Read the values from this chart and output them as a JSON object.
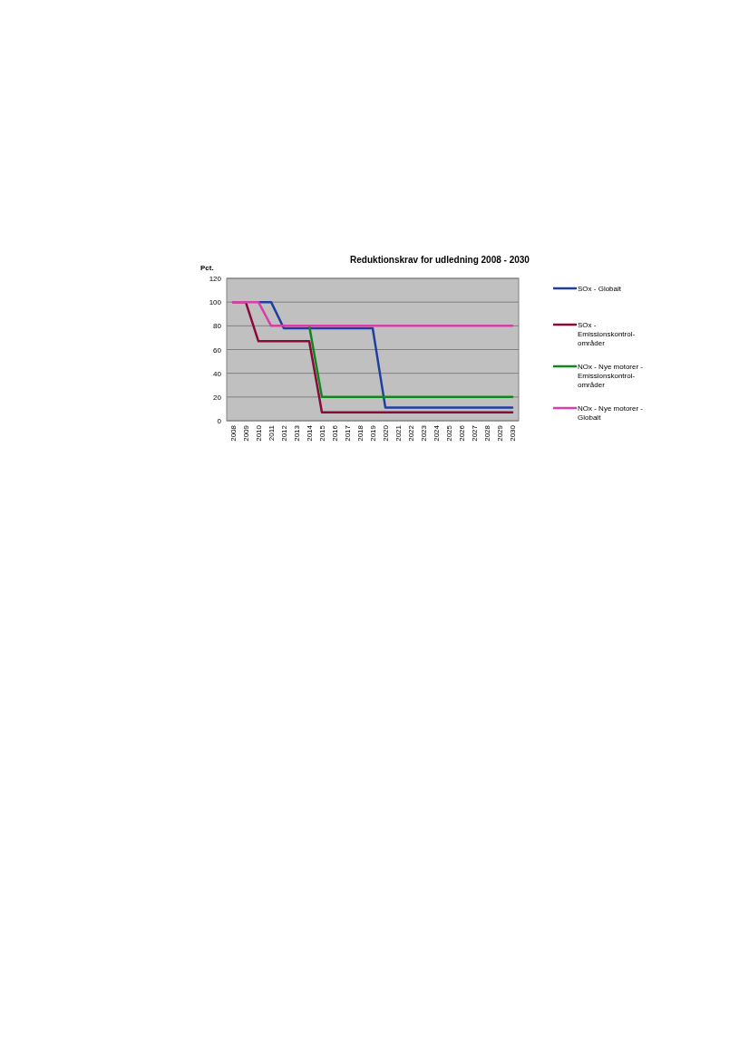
{
  "chart_data": {
    "type": "line",
    "title": "Reduktionskrav for udledning  2008 - 2030",
    "ylabel": "Pct.",
    "categories": [
      "2008",
      "2009",
      "2010",
      "2011",
      "2012",
      "2013",
      "2014",
      "2015",
      "2016",
      "2017",
      "2018",
      "2019",
      "2020",
      "2021",
      "2022",
      "2023",
      "2024",
      "2025",
      "2026",
      "2027",
      "2028",
      "2029",
      "2030"
    ],
    "series": [
      {
        "name": "SOx - Globalt",
        "color": "#1f3fa0",
        "values": [
          null,
          null,
          100,
          100,
          78,
          78,
          78,
          78,
          78,
          78,
          78,
          78,
          11,
          11,
          11,
          11,
          11,
          11,
          11,
          11,
          11,
          11,
          11
        ]
      },
      {
        "name": "SOx - Emissionskontrol-områder",
        "color": "#8b0a3c",
        "values": [
          100,
          100,
          67,
          67,
          67,
          67,
          67,
          7,
          7,
          7,
          7,
          7,
          7,
          7,
          7,
          7,
          7,
          7,
          7,
          7,
          7,
          7,
          7
        ]
      },
      {
        "name": "NOx - Nye motorer - Emissionskontrol-områder",
        "color": "#12851f",
        "values": [
          null,
          null,
          null,
          null,
          null,
          null,
          80,
          20,
          20,
          20,
          20,
          20,
          20,
          20,
          20,
          20,
          20,
          20,
          20,
          20,
          20,
          20,
          20
        ]
      },
      {
        "name": "NOx - Nye motorer - Globalt",
        "color": "#d63fa8",
        "values": [
          100,
          100,
          100,
          80,
          80,
          80,
          80,
          80,
          80,
          80,
          80,
          80,
          80,
          80,
          80,
          80,
          80,
          80,
          80,
          80,
          80,
          80,
          80
        ]
      }
    ],
    "ylim": [
      0,
      120
    ],
    "yticks": [
      0,
      20,
      40,
      60,
      80,
      100,
      120
    ],
    "grid": "y",
    "legend": "right",
    "marker": "none",
    "line_style": "solid"
  }
}
